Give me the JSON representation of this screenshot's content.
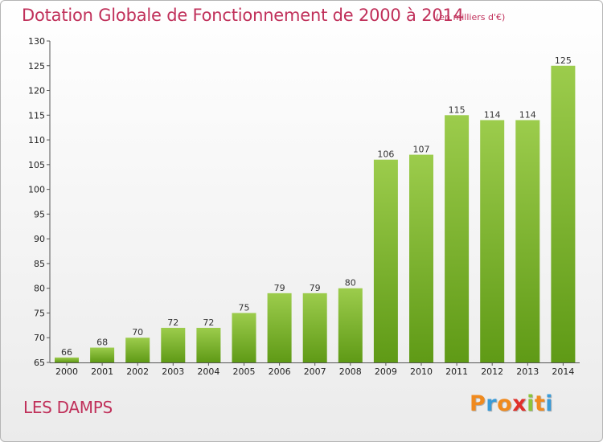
{
  "header": {
    "title": "Dotation Globale de Fonctionnement de 2000 à 2014",
    "unit": "(en milliers d'€)"
  },
  "footer": {
    "commune": "LES DAMPS",
    "logo_letters": [
      "P",
      "r",
      "o",
      "x",
      "i",
      "t",
      "i"
    ],
    "logo_colors": [
      "#f08a1e",
      "#3a9bd8",
      "#f08a1e",
      "#e0302a",
      "#8cc43a",
      "#f08a1e",
      "#3a9bd8"
    ]
  },
  "colors": {
    "title": "#c0305a",
    "bar_top": "#9ccc4c",
    "bar_bottom": "#5f9a16"
  },
  "chart_data": {
    "type": "bar",
    "title": "Dotation Globale de Fonctionnement de 2000 à 2014",
    "subtitle": "(en milliers d'€)",
    "categories": [
      "2000",
      "2001",
      "2002",
      "2003",
      "2004",
      "2005",
      "2006",
      "2007",
      "2008",
      "2009",
      "2010",
      "2011",
      "2012",
      "2013",
      "2014"
    ],
    "values": [
      66,
      68,
      70,
      72,
      72,
      75,
      79,
      79,
      80,
      106,
      107,
      115,
      114,
      114,
      125
    ],
    "ylim": [
      65,
      130
    ],
    "yticks": [
      65,
      70,
      75,
      80,
      85,
      90,
      95,
      100,
      105,
      110,
      115,
      120,
      125,
      130
    ],
    "grid": false,
    "data_labels": true
  }
}
